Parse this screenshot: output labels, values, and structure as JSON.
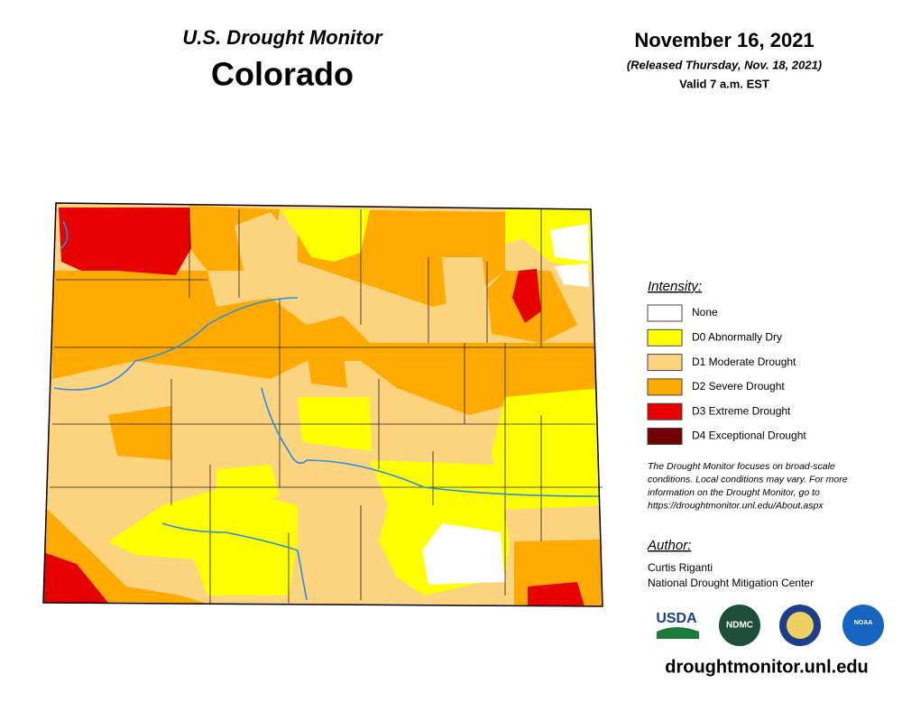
{
  "header": {
    "title": "U.S. Drought Monitor",
    "state": "Colorado",
    "date": "November 16, 2021",
    "released": "(Released Thursday, Nov. 18, 2021)",
    "valid": "Valid 7 a.m. EST"
  },
  "legend": {
    "title": "Intensity:",
    "items": [
      {
        "label": "None",
        "color": "#ffffff"
      },
      {
        "label": "D0 Abnormally Dry",
        "color": "#ffff00"
      },
      {
        "label": "D1 Moderate Drought",
        "color": "#fcd37f"
      },
      {
        "label": "D2 Severe Drought",
        "color": "#ffaa00"
      },
      {
        "label": "D3 Extreme Drought",
        "color": "#e60000"
      },
      {
        "label": "D4 Exceptional Drought",
        "color": "#730000"
      }
    ],
    "note": [
      "The Drought Monitor focuses on broad-scale",
      "conditions. Local conditions may vary. For more",
      "information on the Drought Monitor, go to",
      "https://droughtmonitor.unl.edu/About.aspx"
    ]
  },
  "author": {
    "title": "Author:",
    "lines": [
      "Curtis Riganti",
      "National Drought Mitigation Center"
    ]
  },
  "logos": [
    "USDA",
    "NDMC",
    "NOAA"
  ],
  "url": "droughtmonitor.unl.edu"
}
